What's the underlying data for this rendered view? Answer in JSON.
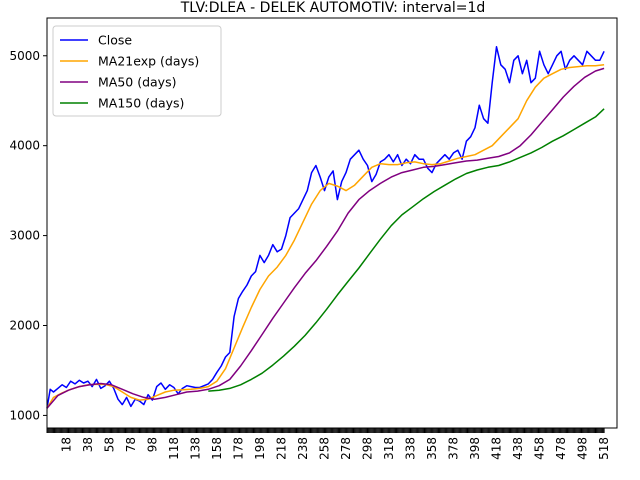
{
  "chart_data": {
    "type": "line",
    "title": "TLV:DLEA - DELEK AUTOMOTIV: interval=1d",
    "xlabel": "",
    "ylabel": "",
    "xlim": [
      0,
      530
    ],
    "ylim": [
      860,
      5420
    ],
    "x_ticks": [
      18,
      38,
      58,
      78,
      98,
      118,
      138,
      158,
      178,
      198,
      218,
      238,
      258,
      278,
      298,
      318,
      338,
      358,
      378,
      398,
      418,
      438,
      458,
      478,
      498,
      518
    ],
    "y_ticks": [
      1000,
      2000,
      3000,
      4000,
      5000
    ],
    "legend_position": "top-left",
    "series": [
      {
        "name": "Close",
        "color": "#0000ff",
        "x": [
          0,
          3,
          6,
          10,
          14,
          18,
          22,
          26,
          30,
          34,
          38,
          42,
          46,
          50,
          54,
          58,
          62,
          66,
          70,
          74,
          78,
          82,
          86,
          90,
          94,
          98,
          102,
          106,
          110,
          114,
          118,
          122,
          126,
          130,
          134,
          138,
          142,
          146,
          150,
          154,
          158,
          162,
          166,
          170,
          174,
          178,
          182,
          186,
          190,
          194,
          198,
          202,
          206,
          210,
          214,
          218,
          222,
          226,
          230,
          234,
          238,
          242,
          246,
          250,
          254,
          258,
          262,
          266,
          270,
          274,
          278,
          282,
          286,
          290,
          294,
          298,
          302,
          306,
          310,
          314,
          318,
          322,
          326,
          330,
          334,
          338,
          342,
          346,
          350,
          354,
          358,
          362,
          366,
          370,
          374,
          378,
          382,
          386,
          390,
          394,
          398,
          402,
          406,
          410,
          414,
          418,
          422,
          426,
          430,
          434,
          438,
          442,
          446,
          450,
          454,
          458,
          462,
          466,
          470,
          474,
          478,
          482,
          486,
          490,
          494,
          498,
          502,
          506,
          510,
          514,
          518
        ],
        "values": [
          1080,
          1290,
          1260,
          1300,
          1340,
          1310,
          1380,
          1350,
          1390,
          1360,
          1380,
          1320,
          1400,
          1300,
          1330,
          1380,
          1300,
          1180,
          1120,
          1200,
          1100,
          1180,
          1160,
          1120,
          1230,
          1170,
          1320,
          1360,
          1290,
          1340,
          1310,
          1240,
          1300,
          1330,
          1320,
          1310,
          1310,
          1330,
          1350,
          1400,
          1480,
          1550,
          1650,
          1700,
          2100,
          2300,
          2380,
          2450,
          2550,
          2600,
          2780,
          2700,
          2780,
          2900,
          2820,
          2850,
          3000,
          3200,
          3250,
          3300,
          3400,
          3500,
          3700,
          3780,
          3650,
          3500,
          3650,
          3720,
          3400,
          3600,
          3700,
          3850,
          3900,
          3950,
          3850,
          3780,
          3600,
          3680,
          3820,
          3850,
          3900,
          3820,
          3900,
          3780,
          3850,
          3800,
          3900,
          3850,
          3850,
          3750,
          3700,
          3800,
          3850,
          3900,
          3850,
          3920,
          3950,
          3850,
          4050,
          4100,
          4200,
          4450,
          4300,
          4250,
          4700,
          5100,
          4900,
          4850,
          4700,
          4950,
          5000,
          4800,
          4950,
          4700,
          4750,
          5050,
          4900,
          4800,
          4900,
          5000,
          5050,
          4850,
          4950,
          5000,
          4950,
          4900,
          5050,
          5000,
          4950,
          4950,
          5050
        ]
      },
      {
        "name": "MA21exp (days)",
        "color": "#ffa500",
        "x": [
          0,
          6,
          14,
          22,
          30,
          38,
          46,
          54,
          62,
          70,
          78,
          86,
          94,
          102,
          110,
          118,
          126,
          134,
          142,
          150,
          158,
          166,
          174,
          182,
          190,
          198,
          206,
          214,
          222,
          230,
          238,
          246,
          254,
          262,
          270,
          278,
          286,
          294,
          302,
          310,
          318,
          326,
          334,
          342,
          350,
          358,
          366,
          374,
          382,
          390,
          398,
          406,
          414,
          422,
          430,
          438,
          446,
          454,
          462,
          470,
          478,
          486,
          494,
          502,
          510,
          518
        ],
        "values": [
          1080,
          1200,
          1250,
          1290,
          1320,
          1340,
          1345,
          1345,
          1320,
          1260,
          1200,
          1170,
          1180,
          1220,
          1260,
          1280,
          1285,
          1290,
          1300,
          1320,
          1380,
          1520,
          1750,
          1980,
          2200,
          2400,
          2550,
          2650,
          2780,
          2950,
          3150,
          3350,
          3500,
          3580,
          3550,
          3500,
          3560,
          3660,
          3760,
          3800,
          3790,
          3790,
          3810,
          3820,
          3800,
          3790,
          3800,
          3830,
          3860,
          3880,
          3900,
          3950,
          4000,
          4100,
          4200,
          4300,
          4500,
          4650,
          4750,
          4800,
          4850,
          4870,
          4880,
          4890,
          4890,
          4900
        ]
      },
      {
        "name": "MA50 (days)",
        "color": "#800080",
        "x": [
          0,
          10,
          20,
          30,
          40,
          50,
          60,
          70,
          80,
          90,
          100,
          110,
          120,
          130,
          140,
          150,
          160,
          170,
          180,
          190,
          200,
          210,
          220,
          230,
          240,
          250,
          260,
          270,
          280,
          290,
          300,
          310,
          320,
          330,
          340,
          350,
          360,
          370,
          380,
          390,
          400,
          410,
          420,
          430,
          440,
          450,
          460,
          470,
          480,
          490,
          500,
          510,
          518
        ],
        "values": [
          1080,
          1220,
          1280,
          1320,
          1340,
          1355,
          1340,
          1290,
          1240,
          1200,
          1180,
          1200,
          1230,
          1260,
          1270,
          1290,
          1330,
          1400,
          1550,
          1720,
          1900,
          2080,
          2250,
          2420,
          2580,
          2720,
          2880,
          3050,
          3250,
          3400,
          3500,
          3580,
          3650,
          3700,
          3730,
          3760,
          3770,
          3790,
          3810,
          3830,
          3840,
          3860,
          3880,
          3920,
          4000,
          4120,
          4260,
          4400,
          4540,
          4660,
          4760,
          4830,
          4860
        ]
      },
      {
        "name": "MA150 (days)",
        "color": "#008000",
        "x": [
          150,
          160,
          170,
          180,
          190,
          200,
          210,
          220,
          230,
          240,
          250,
          260,
          270,
          280,
          290,
          300,
          310,
          320,
          330,
          340,
          350,
          360,
          370,
          380,
          390,
          400,
          410,
          420,
          430,
          440,
          450,
          460,
          470,
          480,
          490,
          500,
          510,
          518
        ],
        "values": [
          1270,
          1280,
          1300,
          1340,
          1400,
          1470,
          1560,
          1660,
          1770,
          1890,
          2030,
          2180,
          2340,
          2490,
          2640,
          2800,
          2960,
          3110,
          3230,
          3320,
          3410,
          3490,
          3560,
          3630,
          3690,
          3730,
          3760,
          3780,
          3820,
          3870,
          3920,
          3980,
          4050,
          4110,
          4180,
          4250,
          4320,
          4410
        ]
      }
    ]
  }
}
